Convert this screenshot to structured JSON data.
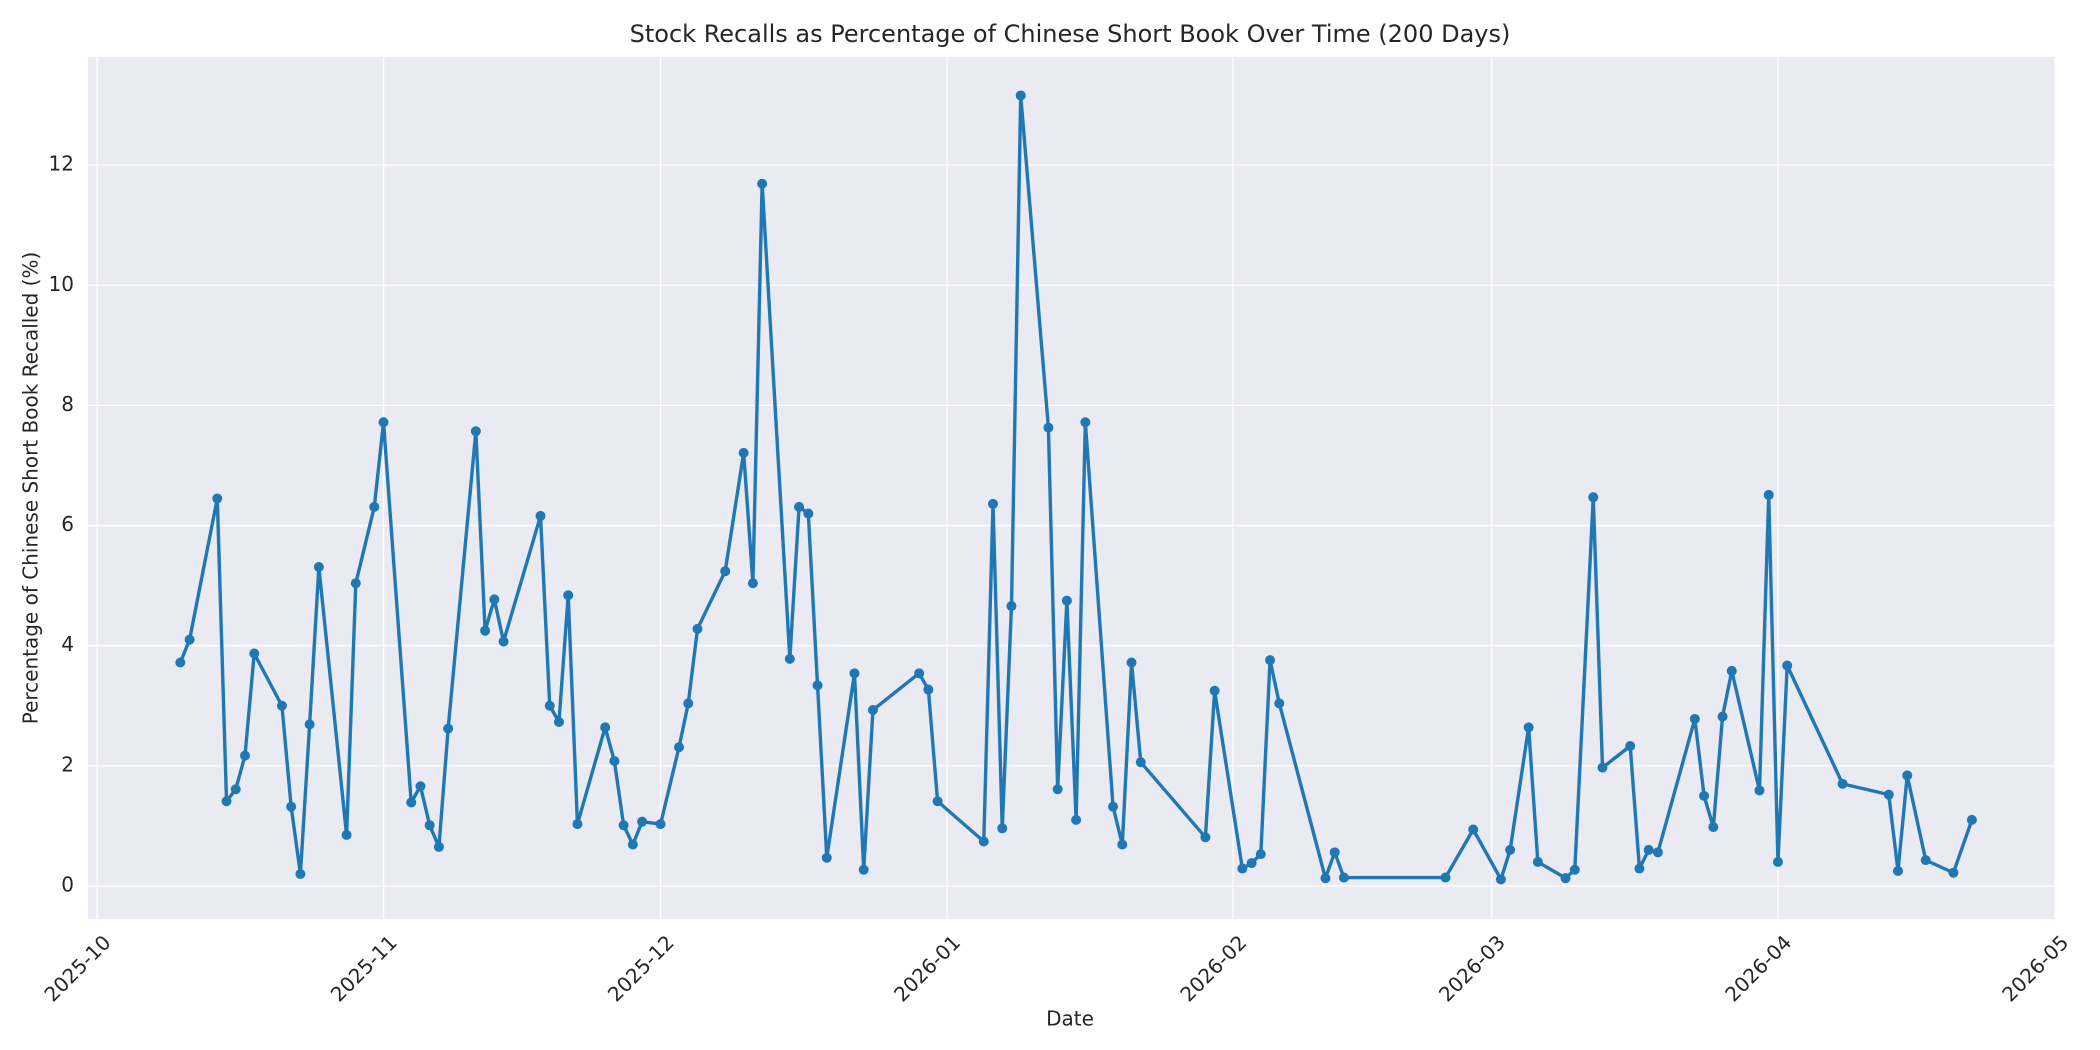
{
  "chart_data": {
    "type": "line",
    "title": "Stock Recalls as Percentage of Chinese Short Book Over Time (200 Days)",
    "xlabel": "Date",
    "ylabel": "Percentage of Chinese Short Book Recalled (%)",
    "color": "#1f77b4",
    "grid": true,
    "x": [
      "2025-10-10",
      "2025-10-11",
      "2025-10-14",
      "2025-10-15",
      "2025-10-16",
      "2025-10-17",
      "2025-10-18",
      "2025-10-21",
      "2025-10-22",
      "2025-10-23",
      "2025-10-24",
      "2025-10-25",
      "2025-10-28",
      "2025-10-29",
      "2025-10-31",
      "2025-11-01",
      "2025-11-04",
      "2025-11-05",
      "2025-11-06",
      "2025-11-07",
      "2025-11-08",
      "2025-11-11",
      "2025-11-12",
      "2025-11-13",
      "2025-11-14",
      "2025-11-18",
      "2025-11-19",
      "2025-11-20",
      "2025-11-21",
      "2025-11-22",
      "2025-11-25",
      "2025-11-26",
      "2025-11-27",
      "2025-11-28",
      "2025-11-29",
      "2025-12-01",
      "2025-12-03",
      "2025-12-04",
      "2025-12-05",
      "2025-12-08",
      "2025-12-10",
      "2025-12-11",
      "2025-12-12",
      "2025-12-15",
      "2025-12-16",
      "2025-12-17",
      "2025-12-18",
      "2025-12-19",
      "2025-12-22",
      "2025-12-23",
      "2025-12-24",
      "2025-12-29",
      "2025-12-30",
      "2025-12-31",
      "2026-01-05",
      "2026-01-06",
      "2026-01-07",
      "2026-01-08",
      "2026-01-09",
      "2026-01-12",
      "2026-01-13",
      "2026-01-14",
      "2026-01-15",
      "2026-01-16",
      "2026-01-19",
      "2026-01-20",
      "2026-01-21",
      "2026-01-22",
      "2026-01-29",
      "2026-01-30",
      "2026-02-02",
      "2026-02-03",
      "2026-02-04",
      "2026-02-05",
      "2026-02-06",
      "2026-02-11",
      "2026-02-12",
      "2026-02-13",
      "2026-02-24",
      "2026-02-27",
      "2026-03-02",
      "2026-03-03",
      "2026-03-05",
      "2026-03-06",
      "2026-03-09",
      "2026-03-10",
      "2026-03-12",
      "2026-03-13",
      "2026-03-16",
      "2026-03-17",
      "2026-03-18",
      "2026-03-19",
      "2026-03-23",
      "2026-03-24",
      "2026-03-25",
      "2026-03-26",
      "2026-03-27",
      "2026-03-30",
      "2026-03-31",
      "2026-04-01",
      "2026-04-02",
      "2026-04-08",
      "2026-04-13",
      "2026-04-14",
      "2026-04-15",
      "2026-04-17",
      "2026-04-20",
      "2026-04-22"
    ],
    "values": [
      3.72,
      4.1,
      6.45,
      1.41,
      1.61,
      2.17,
      3.87,
      3.0,
      1.32,
      0.2,
      2.69,
      5.31,
      0.85,
      5.04,
      6.31,
      7.72,
      1.39,
      1.66,
      1.01,
      0.65,
      2.62,
      7.57,
      4.25,
      4.77,
      4.07,
      6.16,
      3.0,
      2.73,
      4.84,
      1.03,
      2.64,
      2.08,
      1.01,
      0.69,
      1.07,
      1.03,
      2.31,
      3.04,
      4.28,
      5.24,
      7.21,
      5.04,
      11.69,
      3.78,
      6.31,
      6.2,
      3.34,
      0.47,
      3.54,
      0.27,
      2.93,
      3.54,
      3.27,
      1.41,
      0.74,
      6.36,
      0.96,
      4.66,
      13.16,
      7.63,
      1.61,
      4.75,
      1.1,
      7.72,
      1.32,
      0.69,
      3.72,
      2.06,
      0.81,
      3.25,
      0.29,
      0.38,
      0.53,
      3.76,
      3.04,
      0.13,
      0.56,
      0.14,
      0.14,
      0.94,
      0.11,
      0.6,
      2.64,
      0.4,
      0.13,
      0.27,
      6.47,
      1.97,
      2.33,
      0.29,
      0.6,
      0.56,
      2.78,
      1.5,
      0.98,
      2.82,
      3.58,
      1.59,
      6.51,
      0.4,
      3.67,
      1.7,
      1.52,
      0.25,
      1.84,
      0.43,
      0.22,
      1.1
    ],
    "xlim": [
      "2025-09-30",
      "2026-05-01"
    ],
    "xticks": [
      {
        "value": "2025-10-01",
        "label": "2025-10"
      },
      {
        "value": "2025-11-01",
        "label": "2025-11"
      },
      {
        "value": "2025-12-01",
        "label": "2025-12"
      },
      {
        "value": "2026-01-01",
        "label": "2026-01"
      },
      {
        "value": "2026-02-01",
        "label": "2026-02"
      },
      {
        "value": "2026-03-01",
        "label": "2026-03"
      },
      {
        "value": "2026-04-01",
        "label": "2026-04"
      },
      {
        "value": "2026-05-01",
        "label": "2026-05"
      }
    ],
    "ylim": [
      -0.55,
      13.8
    ],
    "yticks": [
      0,
      2,
      4,
      6,
      8,
      10,
      12
    ]
  }
}
